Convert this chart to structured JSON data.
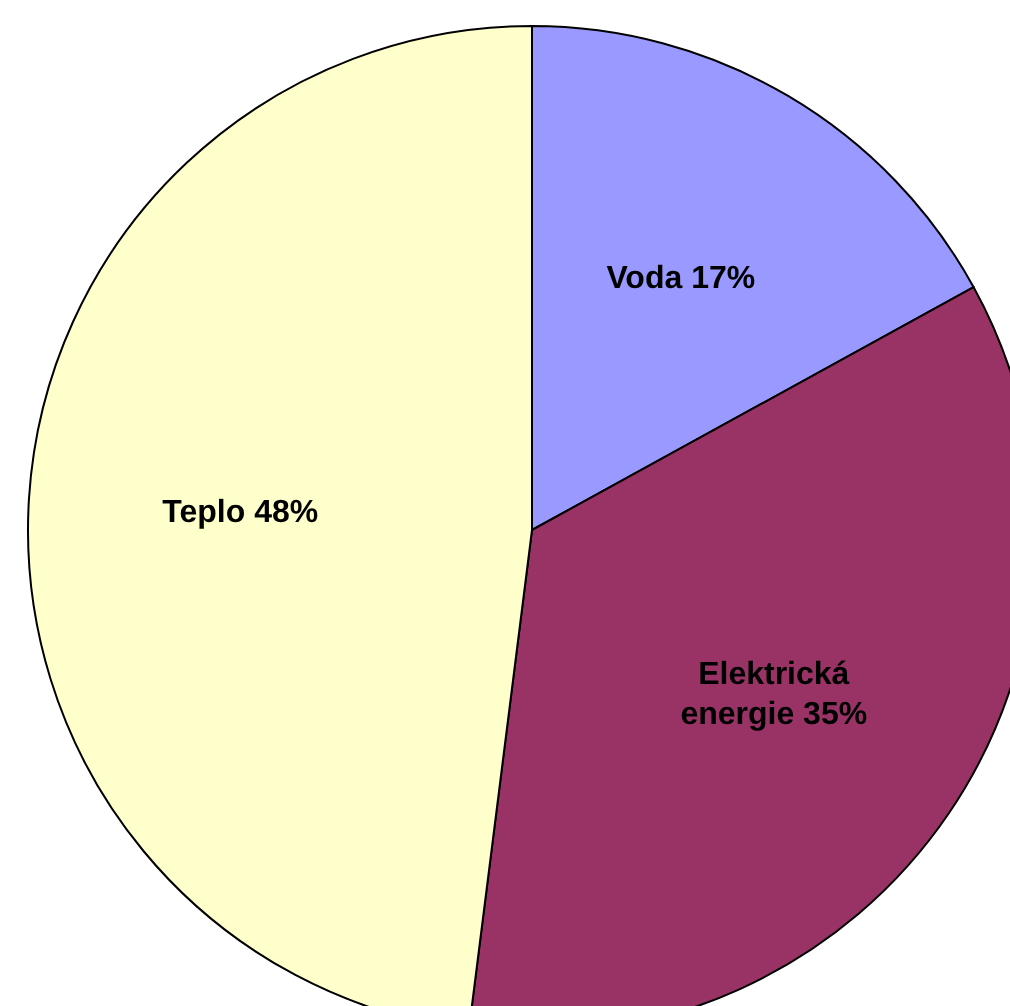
{
  "chart_data": {
    "type": "pie",
    "categories": [
      "Voda",
      "Elektrická energie",
      "Teplo"
    ],
    "values": [
      17,
      35,
      48
    ],
    "colors": [
      "#9999ff",
      "#993366",
      "#ffffcc"
    ],
    "value_labels": [
      "17%",
      "35%",
      "48%"
    ]
  }
}
